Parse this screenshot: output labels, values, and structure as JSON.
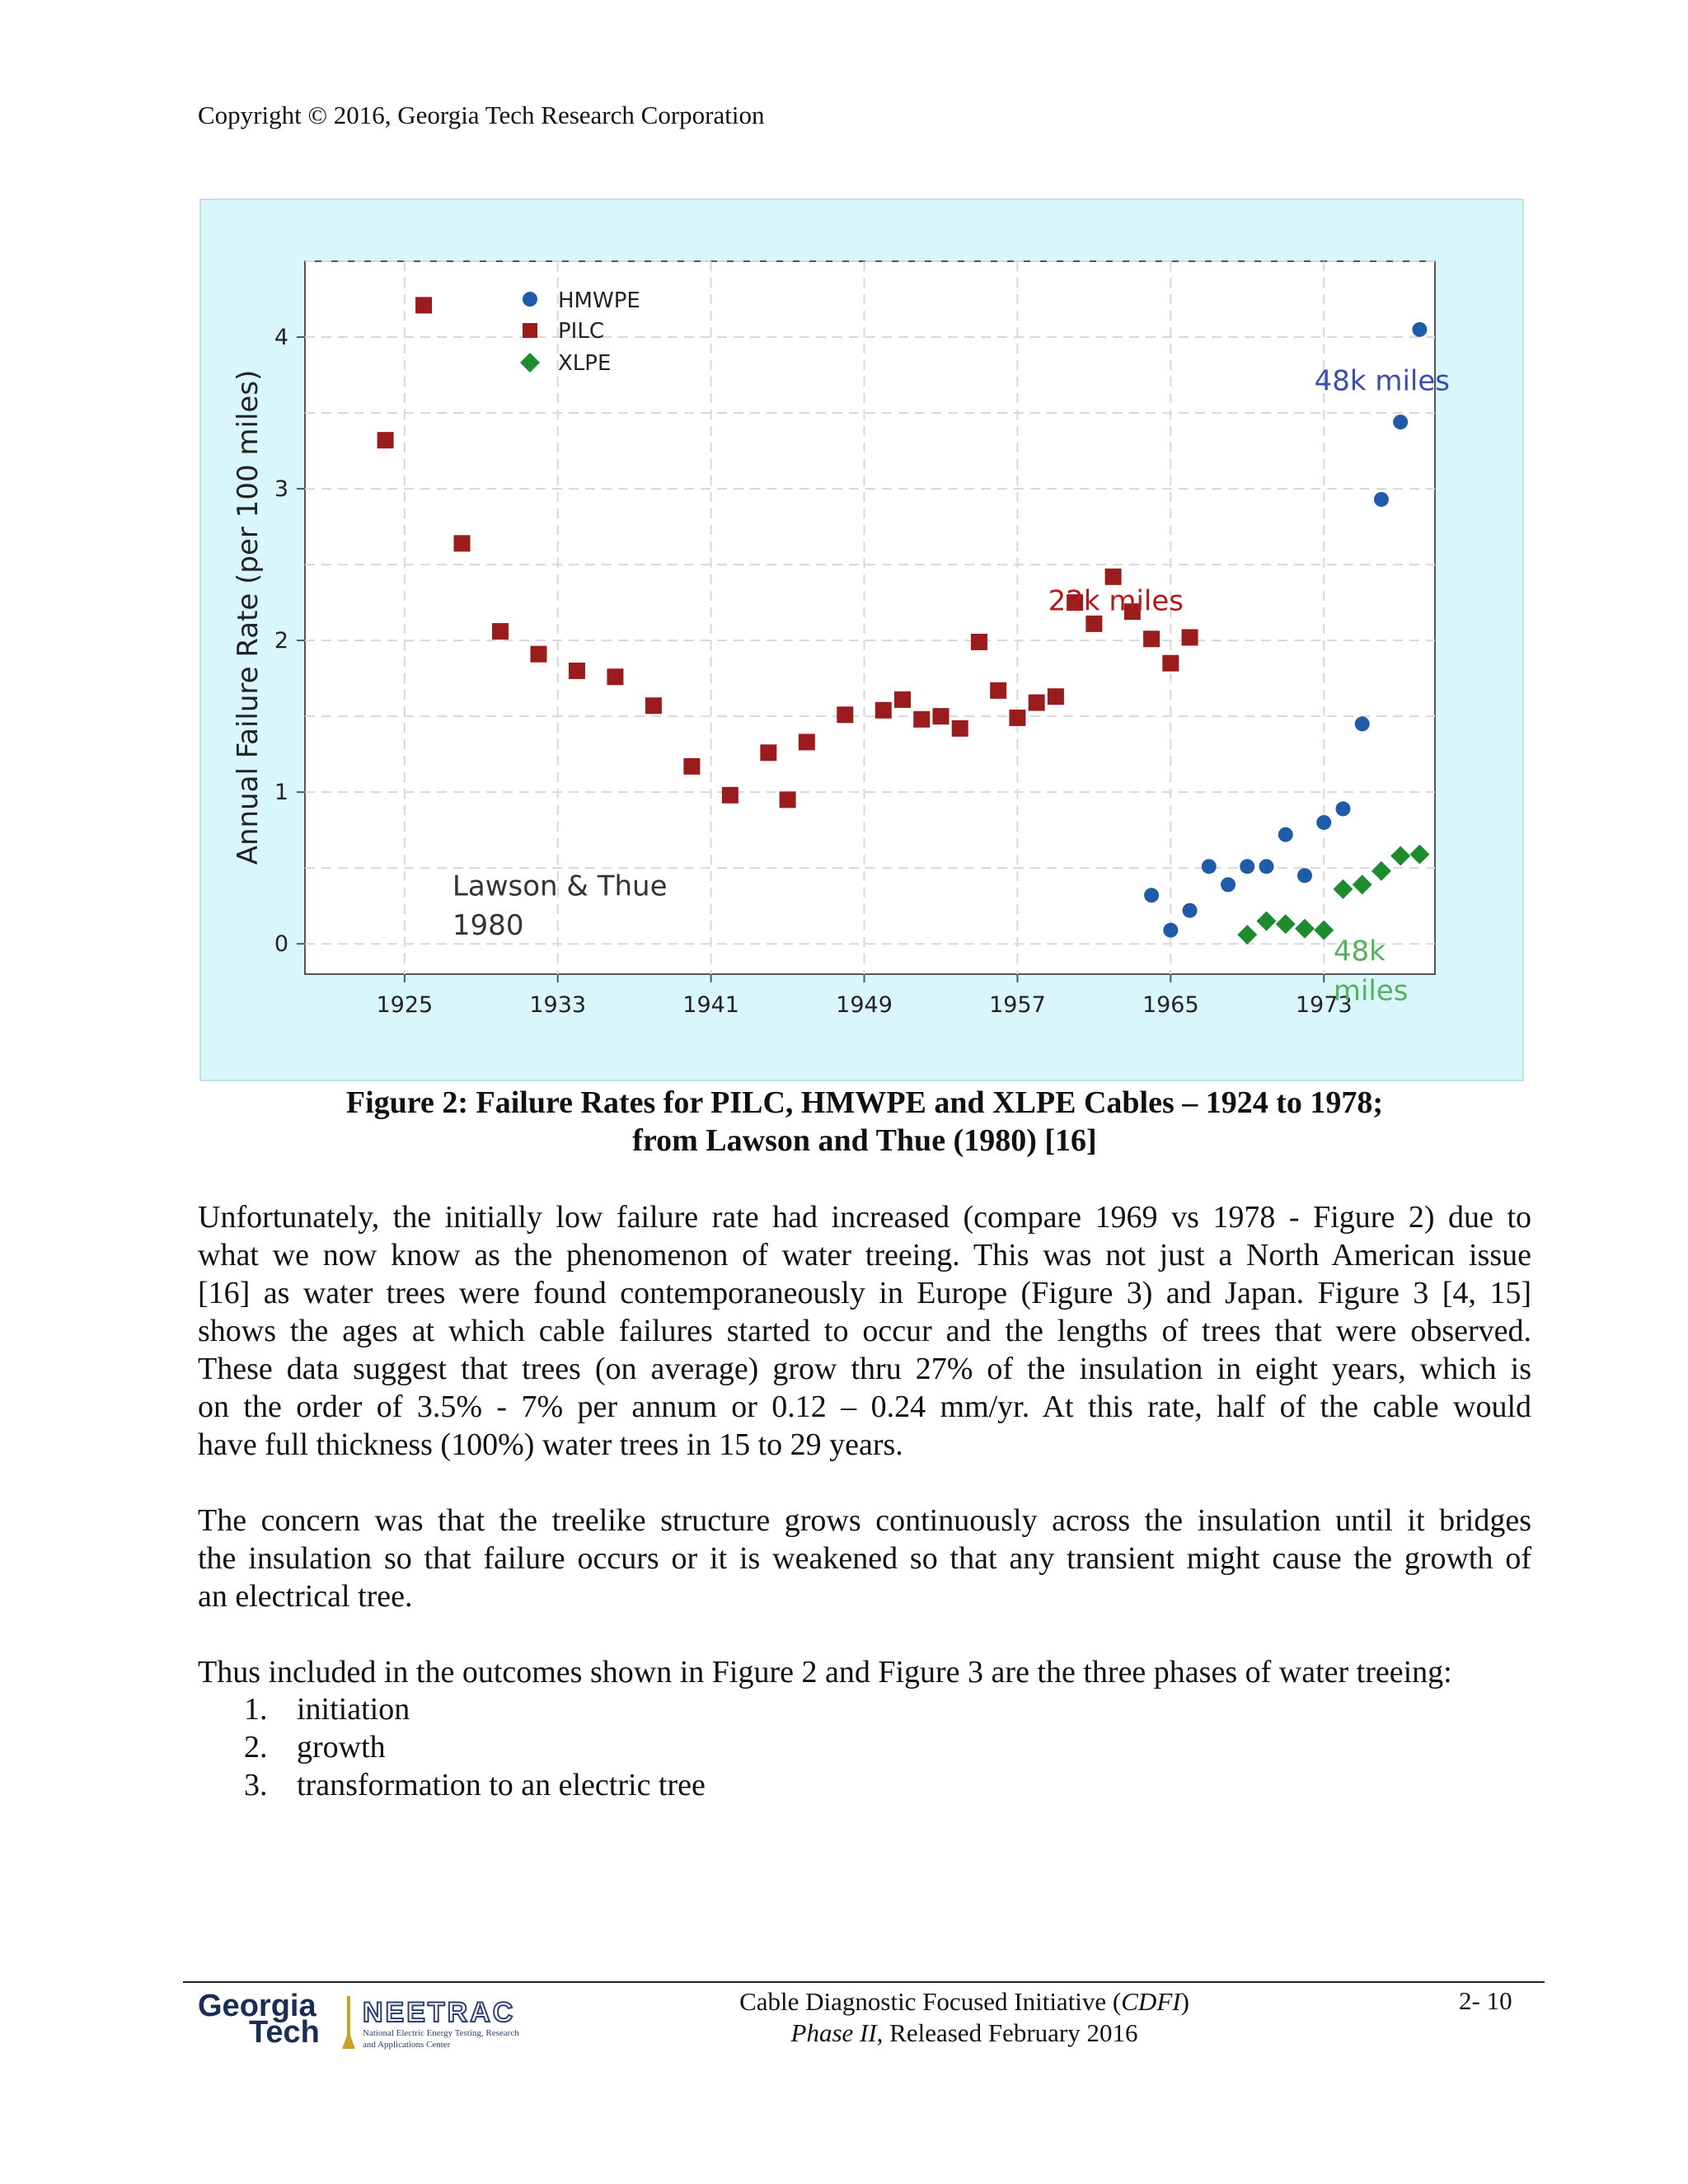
{
  "header": {
    "copyright": "Copyright © 2016, Georgia Tech Research Corporation"
  },
  "figure": {
    "caption_line1": "Figure 2: Failure Rates for PILC, HMWPE and XLPE Cables – 1924 to 1978;",
    "caption_line2": "from Lawson and Thue (1980) [16]"
  },
  "chart_data": {
    "type": "scatter",
    "ylabel": "Annual Failure Rate (per 100 miles)",
    "xlabel": "",
    "xlim": [
      1919.8,
      1978.8
    ],
    "ylim": [
      -0.2,
      4.5
    ],
    "x_ticks": [
      "1925",
      "1933",
      "1941",
      "1949",
      "1957",
      "1965",
      "1973"
    ],
    "y_ticks": [
      "0",
      "1",
      "2",
      "3",
      "4"
    ],
    "grid": true,
    "legend_position": "top-left",
    "series": [
      {
        "name": "HMWPE",
        "marker": "circle",
        "color": "#1f5ca8",
        "points": [
          [
            1964,
            0.32
          ],
          [
            1965,
            0.09
          ],
          [
            1966,
            0.22
          ],
          [
            1967,
            0.51
          ],
          [
            1968,
            0.39
          ],
          [
            1969,
            0.51
          ],
          [
            1970,
            0.51
          ],
          [
            1971,
            0.72
          ],
          [
            1972,
            0.45
          ],
          [
            1973,
            0.8
          ],
          [
            1974,
            0.89
          ],
          [
            1975,
            1.45
          ],
          [
            1976,
            2.93
          ],
          [
            1977,
            3.44
          ],
          [
            1978,
            4.05
          ]
        ]
      },
      {
        "name": "PILC",
        "marker": "square",
        "color": "#9b1c1c",
        "points": [
          [
            1924,
            3.32
          ],
          [
            1926,
            4.21
          ],
          [
            1928,
            2.64
          ],
          [
            1930,
            2.06
          ],
          [
            1932,
            1.91
          ],
          [
            1934,
            1.8
          ],
          [
            1936,
            1.76
          ],
          [
            1938,
            1.57
          ],
          [
            1940,
            1.17
          ],
          [
            1942,
            0.98
          ],
          [
            1944,
            1.26
          ],
          [
            1945,
            0.95
          ],
          [
            1946,
            1.33
          ],
          [
            1948,
            1.51
          ],
          [
            1950,
            1.54
          ],
          [
            1951,
            1.61
          ],
          [
            1952,
            1.48
          ],
          [
            1953,
            1.5
          ],
          [
            1954,
            1.42
          ],
          [
            1955,
            1.99
          ],
          [
            1956,
            1.67
          ],
          [
            1957,
            1.49
          ],
          [
            1958,
            1.59
          ],
          [
            1959,
            1.63
          ],
          [
            1960,
            2.25
          ],
          [
            1961,
            2.11
          ],
          [
            1962,
            2.42
          ],
          [
            1963,
            2.19
          ],
          [
            1964,
            2.01
          ],
          [
            1965,
            1.85
          ],
          [
            1966,
            2.02
          ]
        ]
      },
      {
        "name": "XLPE",
        "marker": "diamond",
        "color": "#1e8c2e",
        "points": [
          [
            1969,
            0.06
          ],
          [
            1970,
            0.15
          ],
          [
            1971,
            0.13
          ],
          [
            1972,
            0.1
          ],
          [
            1973,
            0.09
          ],
          [
            1974,
            0.36
          ],
          [
            1975,
            0.39
          ],
          [
            1976,
            0.48
          ],
          [
            1977,
            0.58
          ],
          [
            1978,
            0.59
          ]
        ]
      }
    ],
    "annotations": [
      {
        "text": "48k miles",
        "x": 1972.5,
        "y": 3.65,
        "color": "#3b4fa8"
      },
      {
        "text": "22k miles",
        "x": 1958.6,
        "y": 2.2,
        "color": "#b21b1b"
      },
      {
        "text": "Lawson & Thue",
        "x": 1927.5,
        "y": 0.32,
        "color": "#333333"
      },
      {
        "text": "1980",
        "x": 1927.5,
        "y": 0.06,
        "color": "#333333"
      },
      {
        "text": "48k",
        "x": 1973.5,
        "y": -0.11,
        "color": "#55b060"
      },
      {
        "text": "miles",
        "x": 1973.5,
        "y": -0.37,
        "color": "#55b060"
      }
    ]
  },
  "body": {
    "p1_lines": [
      "Unfortunately, the initially low failure rate had increased (compare 1969 vs 1978 - Figure 2) due to",
      "what we now know as the phenomenon of water treeing. This was not just a North American issue",
      "[16] as water trees were found contemporaneously in Europe (Figure 3) and Japan. Figure 3 [4, 15]",
      "shows the ages at which cable failures started to occur and the lengths of trees that were observed.",
      "These data suggest that trees (on average) grow thru 27% of the insulation in eight years, which is",
      "on the order of 3.5% - 7% per annum or 0.12 – 0.24 mm/yr. At this rate, half of the cable would",
      "have full thickness (100%) water trees in 15 to 29 years."
    ],
    "p2_lines": [
      "The concern was that the treelike structure grows continuously across the insulation until it bridges",
      "the insulation so that failure occurs or it is weakened so that any transient might cause the growth of",
      "an electrical tree."
    ],
    "p3_line": "Thus included in the outcomes shown in Figure 2 and Figure 3 are the three phases of water treeing:",
    "list": [
      {
        "num": "1.",
        "text": "initiation"
      },
      {
        "num": "2.",
        "text": "growth"
      },
      {
        "num": "3.",
        "text": "transformation to an electric tree"
      }
    ]
  },
  "footer": {
    "logo_line1": "Georgia",
    "logo_line2": "Tech",
    "org_logo_name": "NEETRAC",
    "org_logo_sub1": "National Electric Energy Testing, Research",
    "org_logo_sub2": "and Applications Center",
    "line1_pre": "Cable Diagnostic Focused Initiative (",
    "line1_em": "CDFI",
    "line1_post": ")",
    "line2_em": "Phase II",
    "line2_post": ", Released February 2016",
    "page": "2- 10"
  }
}
